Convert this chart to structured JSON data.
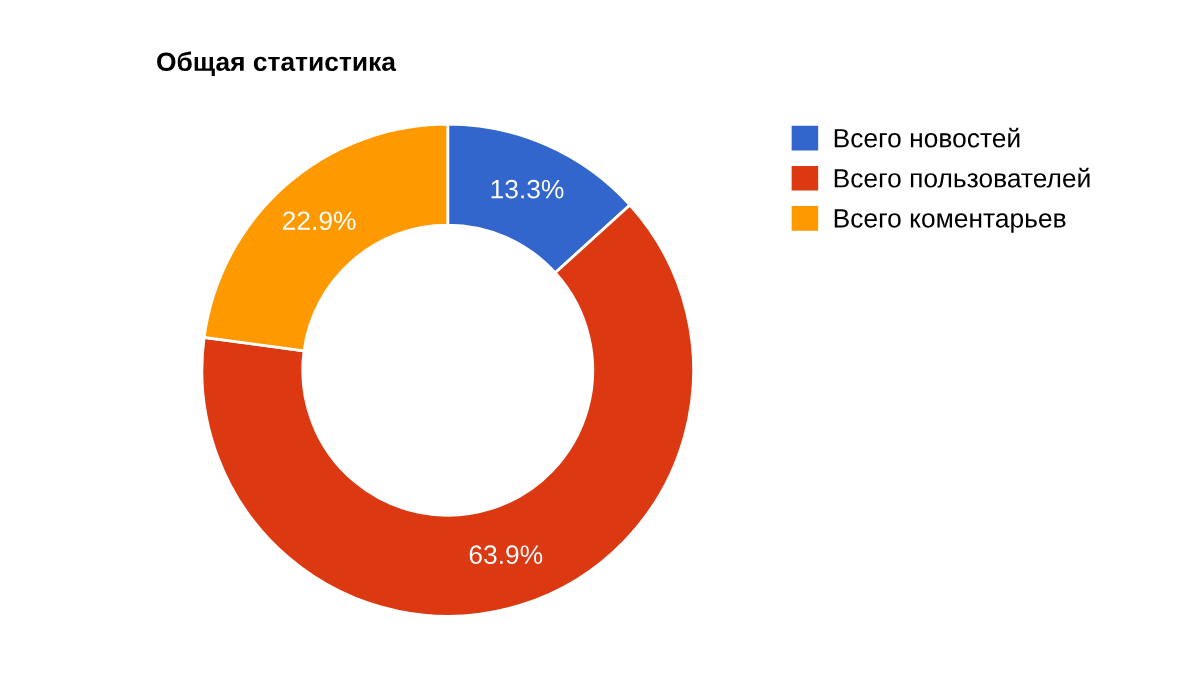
{
  "chart_data": {
    "type": "donut",
    "title": "Общая статистика",
    "categories": [
      "Всего новостей",
      "Всего пользователей",
      "Всего коментарьев"
    ],
    "values": [
      13.3,
      63.9,
      22.9
    ],
    "colors": [
      "#3366cc",
      "#dc3912",
      "#ff9900"
    ],
    "value_labels": [
      "13.3%",
      "63.9%",
      "22.9%"
    ],
    "legend": "right"
  }
}
